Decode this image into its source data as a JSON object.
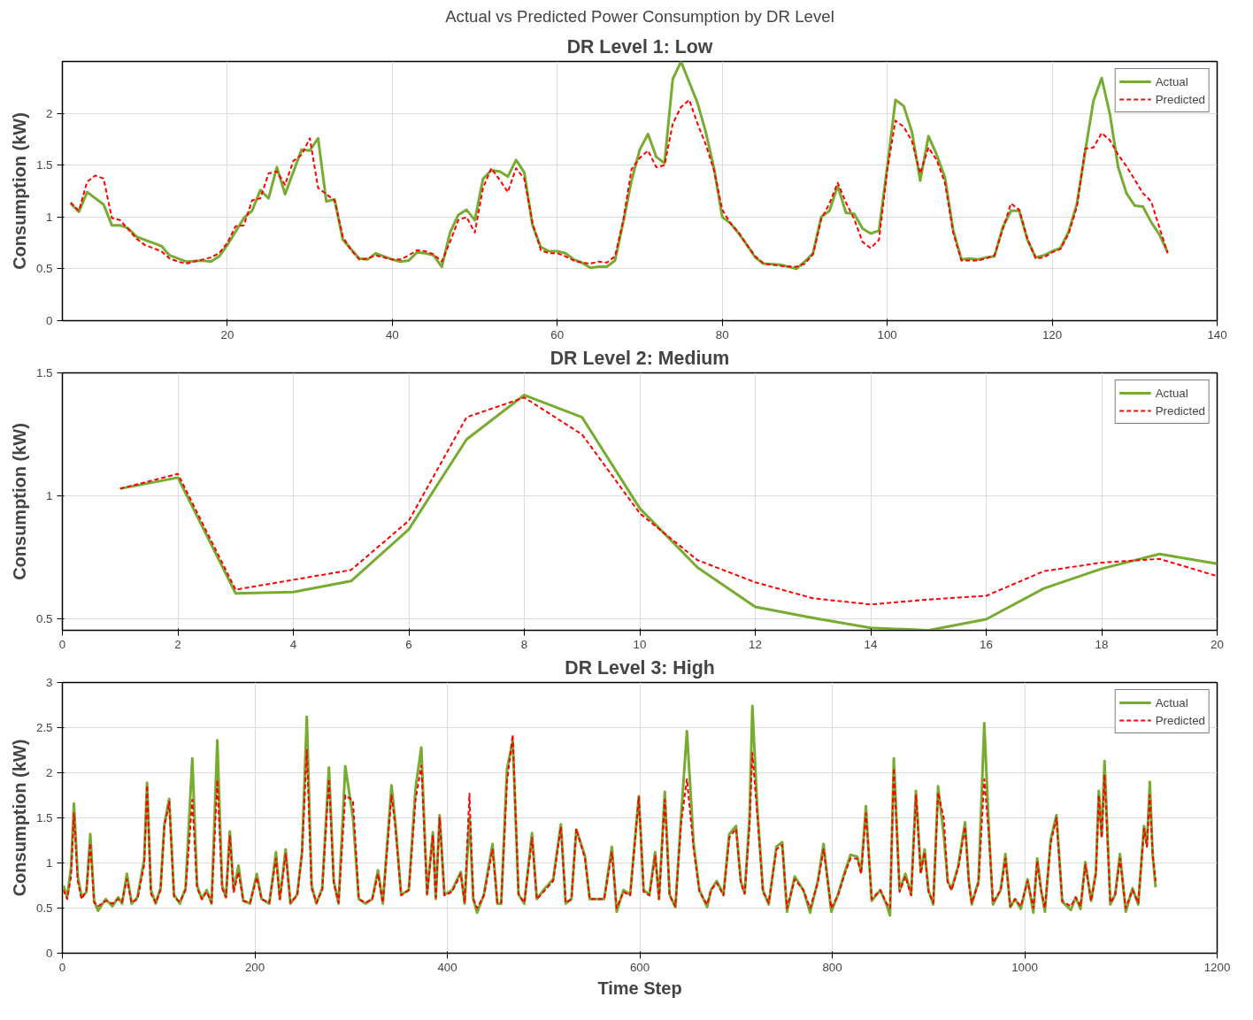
{
  "chart_data": [
    {
      "type": "line",
      "title": "DR Level 1: Low",
      "ylabel": "Consumption (kW)",
      "annotations": [
        "Actual vs Predicted Power Consumption by DR Level"
      ],
      "xlim": [
        0,
        140
      ],
      "xticks": [
        20,
        40,
        60,
        80,
        100,
        120,
        140
      ],
      "ylim": [
        0,
        2.5
      ],
      "yticks": [
        0,
        0.5,
        1,
        1.5,
        2
      ],
      "grid": true,
      "legend": "top right",
      "series": [
        {
          "name": "Actual",
          "color": "#77ac30",
          "line_style": "solid",
          "x": [
            1,
            2,
            3,
            5,
            6,
            7,
            8,
            9,
            10,
            12,
            13,
            15,
            17,
            18,
            19,
            20,
            21,
            22,
            23,
            24,
            25,
            26,
            27,
            29,
            30,
            31,
            32,
            33,
            34,
            36,
            37,
            38,
            40,
            41,
            42,
            43,
            44,
            45,
            46,
            47,
            48,
            49,
            50,
            51,
            52,
            53,
            54,
            55,
            56,
            57,
            58,
            59,
            60,
            61,
            62,
            63,
            64,
            65,
            66,
            67,
            68,
            69,
            70,
            71,
            72,
            73,
            74,
            75,
            76,
            77,
            78,
            79,
            80,
            81,
            82,
            83,
            84,
            85,
            87,
            89,
            90,
            91,
            92,
            93,
            94,
            95,
            96,
            97,
            98,
            99,
            100,
            101,
            102,
            103,
            104,
            105,
            106,
            107,
            108,
            109,
            110,
            111,
            112,
            113,
            114,
            115,
            116,
            117,
            118,
            119,
            120,
            121,
            122,
            123,
            124,
            125,
            126,
            127,
            128,
            129,
            130,
            131,
            132,
            133,
            134
          ],
          "values": [
            1.13,
            1.05,
            1.24,
            1.12,
            0.92,
            0.92,
            0.89,
            0.81,
            0.78,
            0.72,
            0.63,
            0.57,
            0.58,
            0.57,
            0.62,
            0.73,
            0.86,
            0.99,
            1.06,
            1.26,
            1.18,
            1.48,
            1.22,
            1.65,
            1.64,
            1.76,
            1.15,
            1.17,
            0.78,
            0.6,
            0.59,
            0.65,
            0.59,
            0.57,
            0.58,
            0.66,
            0.65,
            0.63,
            0.52,
            0.85,
            1.02,
            1.07,
            0.97,
            1.37,
            1.45,
            1.44,
            1.39,
            1.55,
            1.43,
            0.92,
            0.71,
            0.67,
            0.67,
            0.65,
            0.59,
            0.56,
            0.51,
            0.52,
            0.52,
            0.58,
            0.95,
            1.35,
            1.65,
            1.8,
            1.58,
            1.52,
            2.33,
            2.5,
            2.3,
            2.1,
            1.82,
            1.47,
            1.0,
            0.94,
            0.84,
            0.73,
            0.61,
            0.55,
            0.54,
            0.5,
            0.57,
            0.65,
            1.0,
            1.06,
            1.3,
            1.04,
            1.03,
            0.89,
            0.84,
            0.87,
            1.48,
            2.13,
            2.07,
            1.82,
            1.35,
            1.78,
            1.6,
            1.38,
            0.87,
            0.59,
            0.6,
            0.59,
            0.61,
            0.62,
            0.9,
            1.06,
            1.06,
            0.78,
            0.61,
            0.63,
            0.67,
            0.7,
            0.86,
            1.13,
            1.63,
            2.12,
            2.34,
            1.99,
            1.48,
            1.23,
            1.11,
            1.1,
            0.95,
            0.83,
            0.66
          ]
        },
        {
          "name": "Predicted",
          "color": "#ff0000",
          "line_style": "dashed",
          "x": [
            1,
            2,
            3,
            4,
            5,
            6,
            7,
            8,
            9,
            10,
            12,
            13,
            14,
            15,
            17,
            18,
            19,
            20,
            21,
            22,
            23,
            24,
            25,
            26,
            27,
            28,
            29,
            30,
            31,
            32,
            33,
            34,
            35,
            36,
            37,
            38,
            40,
            41,
            42,
            43,
            44,
            45,
            46,
            47,
            48,
            49,
            50,
            51,
            52,
            53,
            54,
            55,
            56,
            57,
            58,
            59,
            60,
            61,
            62,
            63,
            64,
            65,
            66,
            67,
            68,
            69,
            70,
            71,
            72,
            73,
            74,
            75,
            76,
            77,
            78,
            79,
            80,
            81,
            82,
            83,
            84,
            85,
            87,
            89,
            90,
            91,
            92,
            93,
            94,
            95,
            96,
            97,
            98,
            99,
            100,
            101,
            102,
            103,
            104,
            105,
            106,
            107,
            108,
            109,
            110,
            111,
            112,
            113,
            114,
            115,
            116,
            117,
            118,
            119,
            120,
            121,
            122,
            123,
            124,
            125,
            126,
            127,
            128,
            129,
            130,
            131,
            132,
            133,
            134
          ],
          "values": [
            1.14,
            1.06,
            1.34,
            1.4,
            1.37,
            0.99,
            0.97,
            0.88,
            0.79,
            0.73,
            0.67,
            0.6,
            0.57,
            0.55,
            0.59,
            0.61,
            0.65,
            0.75,
            0.91,
            0.92,
            1.16,
            1.18,
            1.42,
            1.44,
            1.31,
            1.54,
            1.6,
            1.76,
            1.28,
            1.22,
            1.16,
            0.81,
            0.68,
            0.59,
            0.6,
            0.63,
            0.59,
            0.59,
            0.63,
            0.68,
            0.67,
            0.64,
            0.57,
            0.76,
            0.97,
            1.0,
            0.85,
            1.28,
            1.47,
            1.36,
            1.24,
            1.47,
            1.37,
            0.94,
            0.68,
            0.65,
            0.65,
            0.62,
            0.58,
            0.56,
            0.55,
            0.57,
            0.56,
            0.62,
            0.97,
            1.46,
            1.57,
            1.64,
            1.48,
            1.5,
            1.9,
            2.06,
            2.13,
            1.9,
            1.7,
            1.45,
            1.07,
            0.94,
            0.85,
            0.73,
            0.62,
            0.55,
            0.53,
            0.52,
            0.55,
            0.64,
            0.98,
            1.13,
            1.33,
            1.14,
            0.98,
            0.76,
            0.7,
            0.78,
            1.45,
            1.93,
            1.87,
            1.73,
            1.42,
            1.67,
            1.55,
            1.33,
            0.85,
            0.58,
            0.58,
            0.58,
            0.6,
            0.63,
            0.88,
            1.13,
            1.07,
            0.79,
            0.6,
            0.61,
            0.66,
            0.69,
            0.84,
            1.1,
            1.66,
            1.67,
            1.81,
            1.74,
            1.6,
            1.49,
            1.36,
            1.23,
            1.15,
            0.9,
            0.65
          ]
        }
      ]
    },
    {
      "type": "line",
      "title": "DR Level 2: Medium",
      "ylabel": "Consumption (kW)",
      "xlim": [
        0,
        20
      ],
      "xticks": [
        0,
        2,
        4,
        6,
        8,
        10,
        12,
        14,
        16,
        18,
        20
      ],
      "ylim": [
        0.455,
        1.5
      ],
      "yticks": [
        0.5,
        1,
        1.5
      ],
      "grid": true,
      "legend": "top right",
      "series": [
        {
          "name": "Actual",
          "color": "#77ac30",
          "line_style": "solid",
          "x": [
            1,
            2,
            3,
            4,
            5,
            6,
            7,
            8,
            9,
            10,
            11,
            12,
            13,
            14,
            15,
            16,
            17,
            18,
            19,
            20
          ],
          "values": [
            1.03,
            1.075,
            0.605,
            0.61,
            0.655,
            0.865,
            1.23,
            1.41,
            1.32,
            0.95,
            0.71,
            0.55,
            0.505,
            0.465,
            0.455,
            0.5,
            0.625,
            0.705,
            0.765,
            0.725
          ]
        },
        {
          "name": "Predicted",
          "color": "#ff0000",
          "line_style": "dashed",
          "x": [
            1,
            2,
            3,
            4,
            5,
            6,
            7,
            8,
            9,
            10,
            11,
            12,
            13,
            14,
            15,
            16,
            17,
            18,
            19,
            20
          ],
          "values": [
            1.03,
            1.09,
            0.62,
            0.66,
            0.7,
            0.9,
            1.32,
            1.4,
            1.25,
            0.93,
            0.74,
            0.65,
            0.585,
            0.56,
            0.58,
            0.595,
            0.695,
            0.73,
            0.745,
            0.675
          ]
        }
      ]
    },
    {
      "type": "line",
      "title": "DR Level 3: High",
      "xlabel": "Time Step",
      "ylabel": "Consumption (kW)",
      "xlim": [
        0,
        1200
      ],
      "xticks": [
        0,
        200,
        400,
        600,
        800,
        1000,
        1200
      ],
      "ylim": [
        0,
        3
      ],
      "yticks": [
        0,
        0.5,
        1,
        1.5,
        2,
        2.5,
        3
      ],
      "grid": true,
      "legend": "top right",
      "series": [
        {
          "name": "Actual",
          "color": "#77ac30",
          "line_style": "solid",
          "x": [
            1,
            5,
            9,
            12,
            16,
            20,
            25,
            29,
            33,
            37,
            45,
            52,
            58,
            62,
            67,
            72,
            78,
            85,
            88,
            92,
            97,
            102,
            106,
            111,
            116,
            122,
            128,
            135,
            140,
            145,
            150,
            155,
            161,
            166,
            170,
            174,
            178,
            183,
            188,
            195,
            202,
            207,
            215,
            222,
            226,
            232,
            237,
            244,
            249,
            254,
            259,
            264,
            270,
            277,
            282,
            287,
            294,
            302,
            308,
            315,
            322,
            328,
            333,
            342,
            346,
            352,
            360,
            367,
            373,
            379,
            385,
            388,
            392,
            397,
            405,
            414,
            418,
            423,
            427,
            431,
            438,
            447,
            452,
            456,
            462,
            468,
            474,
            480,
            488,
            493,
            500,
            510,
            518,
            523,
            529,
            534,
            543,
            548,
            556,
            563,
            571,
            576,
            583,
            590,
            599,
            604,
            610,
            616,
            620,
            626,
            631,
            637,
            643,
            649,
            656,
            662,
            670,
            674,
            680,
            687,
            693,
            700,
            705,
            709,
            714,
            717,
            722,
            728,
            734,
            742,
            748,
            753,
            761,
            770,
            777,
            785,
            791,
            799,
            806,
            813,
            819,
            826,
            830,
            835,
            841,
            850,
            856,
            860,
            864,
            870,
            876,
            882,
            887,
            892,
            896,
            900,
            905,
            910,
            916,
            920,
            924,
            931,
            938,
            942,
            945,
            952,
            958,
            963,
            967,
            975,
            980,
            985,
            990,
            996,
            1003,
            1009,
            1013,
            1017,
            1021,
            1027,
            1033,
            1039,
            1048,
            1053,
            1058,
            1063,
            1069,
            1074,
            1077,
            1080,
            1083,
            1089,
            1094,
            1099,
            1105,
            1112,
            1118,
            1124,
            1127,
            1130,
            1133,
            1136
          ],
          "values": [
            0.75,
            0.62,
            0.95,
            1.66,
            0.85,
            0.62,
            0.68,
            1.32,
            0.58,
            0.47,
            0.6,
            0.52,
            0.62,
            0.55,
            0.88,
            0.55,
            0.62,
            1.04,
            1.89,
            0.7,
            0.55,
            0.72,
            1.43,
            1.71,
            0.65,
            0.55,
            0.72,
            2.16,
            0.75,
            0.6,
            0.7,
            0.55,
            2.36,
            0.75,
            0.62,
            1.35,
            0.7,
            0.97,
            0.58,
            0.55,
            0.88,
            0.6,
            0.55,
            1.12,
            0.6,
            1.15,
            0.55,
            0.65,
            1.12,
            2.62,
            0.75,
            0.55,
            0.72,
            2.06,
            0.8,
            0.55,
            2.07,
            1.5,
            0.6,
            0.55,
            0.6,
            0.92,
            0.55,
            1.86,
            1.45,
            0.65,
            0.7,
            1.83,
            2.28,
            0.65,
            1.34,
            0.6,
            1.53,
            0.65,
            0.7,
            0.9,
            0.55,
            1.5,
            0.6,
            0.45,
            0.65,
            1.21,
            0.55,
            0.55,
            2.04,
            2.35,
            0.65,
            0.55,
            1.33,
            0.6,
            0.7,
            0.82,
            1.43,
            0.55,
            0.6,
            1.37,
            1.08,
            0.6,
            0.6,
            0.6,
            1.18,
            0.46,
            0.7,
            0.65,
            1.74,
            0.7,
            0.65,
            1.12,
            0.6,
            1.79,
            0.65,
            0.51,
            1.52,
            2.46,
            1.21,
            0.7,
            0.51,
            0.7,
            0.8,
            0.65,
            1.32,
            1.41,
            0.8,
            0.66,
            1.5,
            2.74,
            1.63,
            0.7,
            0.54,
            1.18,
            1.23,
            0.46,
            0.85,
            0.7,
            0.45,
            0.8,
            1.21,
            0.46,
            0.65,
            0.9,
            1.09,
            1.07,
            0.9,
            1.63,
            0.58,
            0.7,
            0.55,
            0.42,
            2.16,
            0.7,
            0.88,
            0.65,
            1.8,
            0.9,
            1.15,
            0.7,
            0.54,
            1.85,
            1.3,
            0.8,
            0.71,
            0.97,
            1.45,
            0.8,
            0.54,
            0.8,
            2.55,
            1.32,
            0.54,
            0.7,
            1.1,
            0.51,
            0.6,
            0.49,
            0.82,
            0.45,
            1.05,
            0.7,
            0.46,
            1.26,
            1.53,
            0.57,
            0.48,
            0.62,
            0.49,
            1.01,
            0.58,
            0.9,
            1.8,
            1.3,
            2.13,
            0.54,
            0.65,
            1.1,
            0.46,
            0.72,
            0.54,
            1.41,
            1.2,
            1.9,
            1.1,
            0.73
          ]
        },
        {
          "name": "Predicted",
          "color": "#ff0000",
          "line_style": "dashed",
          "x": [
            1,
            5,
            9,
            12,
            16,
            20,
            25,
            29,
            33,
            37,
            45,
            52,
            58,
            62,
            67,
            72,
            78,
            85,
            88,
            92,
            97,
            102,
            106,
            111,
            116,
            122,
            128,
            135,
            140,
            145,
            150,
            155,
            161,
            166,
            170,
            174,
            178,
            183,
            188,
            195,
            202,
            207,
            215,
            222,
            226,
            232,
            237,
            244,
            249,
            254,
            259,
            264,
            270,
            277,
            282,
            287,
            294,
            302,
            308,
            315,
            322,
            328,
            333,
            342,
            346,
            352,
            360,
            367,
            373,
            379,
            385,
            388,
            392,
            397,
            405,
            414,
            418,
            423,
            427,
            431,
            438,
            447,
            452,
            456,
            462,
            468,
            474,
            480,
            488,
            493,
            500,
            510,
            518,
            523,
            529,
            534,
            543,
            548,
            556,
            563,
            571,
            576,
            583,
            590,
            599,
            604,
            610,
            616,
            620,
            626,
            631,
            637,
            643,
            649,
            656,
            662,
            670,
            674,
            680,
            687,
            693,
            700,
            705,
            709,
            714,
            717,
            722,
            728,
            734,
            742,
            748,
            753,
            761,
            770,
            777,
            785,
            791,
            799,
            806,
            813,
            819,
            826,
            830,
            835,
            841,
            850,
            856,
            860,
            864,
            870,
            876,
            882,
            887,
            892,
            896,
            900,
            905,
            910,
            916,
            920,
            924,
            931,
            938,
            942,
            945,
            952,
            958,
            963,
            967,
            975,
            980,
            985,
            990,
            996,
            1003,
            1009,
            1013,
            1017,
            1021,
            1027,
            1033,
            1039,
            1048,
            1053,
            1058,
            1063,
            1069,
            1074,
            1077,
            1080,
            1083,
            1089,
            1094,
            1099,
            1105,
            1112,
            1118,
            1124,
            1127,
            1130,
            1133,
            1136
          ],
          "values": [
            0.7,
            0.6,
            0.85,
            1.55,
            0.8,
            0.6,
            0.7,
            1.22,
            0.56,
            0.52,
            0.58,
            0.55,
            0.6,
            0.57,
            0.82,
            0.56,
            0.6,
            0.98,
            1.86,
            0.66,
            0.56,
            0.7,
            1.4,
            1.68,
            0.62,
            0.57,
            0.7,
            1.7,
            0.72,
            0.6,
            0.68,
            0.56,
            1.92,
            0.72,
            0.62,
            1.3,
            0.68,
            0.9,
            0.58,
            0.56,
            0.84,
            0.6,
            0.56,
            1.05,
            0.6,
            1.1,
            0.56,
            0.64,
            1.1,
            2.25,
            0.72,
            0.56,
            0.7,
            1.93,
            0.78,
            0.56,
            1.75,
            1.69,
            0.6,
            0.56,
            0.6,
            0.88,
            0.56,
            1.75,
            1.4,
            0.64,
            0.7,
            1.7,
            2.08,
            0.66,
            1.3,
            0.62,
            1.5,
            0.64,
            0.68,
            0.88,
            0.56,
            1.77,
            0.6,
            0.5,
            0.64,
            1.15,
            0.56,
            0.56,
            1.9,
            2.42,
            0.66,
            0.56,
            1.28,
            0.6,
            0.68,
            0.8,
            1.4,
            0.56,
            0.6,
            1.38,
            1.05,
            0.6,
            0.6,
            0.6,
            1.12,
            0.5,
            0.68,
            0.64,
            1.73,
            0.68,
            0.64,
            1.08,
            0.6,
            1.7,
            0.64,
            0.52,
            1.45,
            1.93,
            1.15,
            0.68,
            0.54,
            0.7,
            0.78,
            0.64,
            1.28,
            1.38,
            0.78,
            0.66,
            1.4,
            2.22,
            1.55,
            0.68,
            0.56,
            1.15,
            1.2,
            0.5,
            0.82,
            0.7,
            0.5,
            0.78,
            1.15,
            0.5,
            0.64,
            0.88,
            1.05,
            1.05,
            0.88,
            1.55,
            0.6,
            0.7,
            0.56,
            0.5,
            2.05,
            0.68,
            0.85,
            0.64,
            1.75,
            0.88,
            1.12,
            0.68,
            0.56,
            1.78,
            1.49,
            0.78,
            0.7,
            0.95,
            1.4,
            0.78,
            0.56,
            0.78,
            1.93,
            1.28,
            0.56,
            0.7,
            1.05,
            0.52,
            0.6,
            0.52,
            0.8,
            0.5,
            1.02,
            0.7,
            0.5,
            1.22,
            1.5,
            0.58,
            0.52,
            0.62,
            0.52,
            0.98,
            0.58,
            0.88,
            1.75,
            1.28,
            1.98,
            0.56,
            0.64,
            1.05,
            0.5,
            0.7,
            0.56,
            1.38,
            1.18,
            1.75,
            1.08,
            0.8
          ]
        }
      ]
    }
  ]
}
